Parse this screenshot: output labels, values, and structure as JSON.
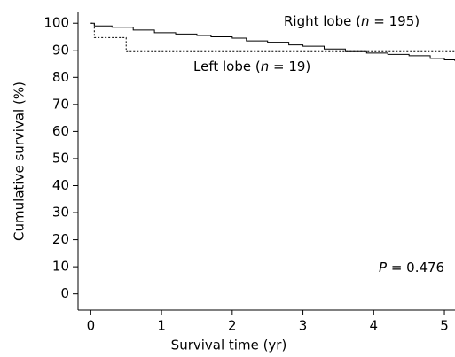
{
  "chart_data": {
    "type": "step",
    "x_label": "Survival time (yr)",
    "y_label": "Cumulative survival (%)",
    "xlim": [
      -0.18,
      5.15
    ],
    "ylim": [
      -6,
      104
    ],
    "xticks": [
      0,
      1,
      2,
      3,
      4,
      5
    ],
    "yticks": [
      0,
      10,
      20,
      30,
      40,
      50,
      60,
      70,
      80,
      90,
      100
    ],
    "series": [
      {
        "name": "Right lobe",
        "color": "#000000",
        "dash": false,
        "x": [
          0,
          0.05,
          0.3,
          0.6,
          0.9,
          1.2,
          1.5,
          1.7,
          2.0,
          2.2,
          2.5,
          2.8,
          3.0,
          3.3,
          3.6,
          3.9,
          4.2,
          4.5,
          4.8,
          5.0,
          5.15
        ],
        "values": [
          100,
          99,
          98.5,
          97.5,
          96.5,
          96,
          95.5,
          95,
          94.5,
          93.5,
          93,
          92,
          91.5,
          90.5,
          89.5,
          89,
          88.5,
          88,
          87,
          86.5,
          86
        ]
      },
      {
        "name": "Left lobe",
        "color": "#000000",
        "dash": true,
        "x": [
          0,
          0.05,
          0.5,
          5.15
        ],
        "values": [
          100,
          94.7,
          89.5,
          89.5
        ]
      }
    ],
    "annotations": [
      {
        "parts": [
          "Right lobe (",
          "n",
          " = 195)"
        ]
      },
      {
        "parts": [
          "Left lobe (",
          "n",
          " = 19)"
        ]
      },
      {
        "parts": [
          "P",
          " = 0.476"
        ]
      }
    ]
  }
}
